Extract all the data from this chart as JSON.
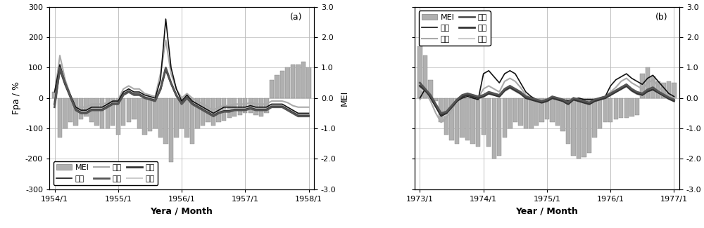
{
  "panel_a": {
    "title": "(a)",
    "xlabel": "Yera / Month",
    "year_start": 1954,
    "year_end": 1958,
    "n_months": 49,
    "xtick_years": [
      1954,
      1955,
      1956,
      1957,
      1958
    ],
    "MEI_bars": [
      20,
      -130,
      -100,
      -80,
      -90,
      -70,
      -60,
      -80,
      -90,
      -100,
      -100,
      -90,
      -120,
      -90,
      -80,
      -70,
      -100,
      -120,
      -110,
      -100,
      -130,
      -150,
      -210,
      -130,
      -100,
      -130,
      -150,
      -100,
      -90,
      -80,
      -90,
      -80,
      -75,
      -65,
      -60,
      -55,
      -50,
      -50,
      -55,
      -60,
      -50,
      60,
      75,
      90,
      100,
      110,
      110,
      120,
      100
    ],
    "tianyi": [
      20,
      110,
      50,
      10,
      -30,
      -40,
      -40,
      -30,
      -30,
      -30,
      -20,
      -10,
      -10,
      20,
      30,
      20,
      20,
      10,
      5,
      0,
      60,
      260,
      100,
      30,
      -10,
      10,
      -10,
      -20,
      -30,
      -40,
      -50,
      -40,
      -30,
      -30,
      -30,
      -30,
      -30,
      -25,
      -30,
      -30,
      -30,
      -20,
      -20,
      -20,
      -30,
      -40,
      -50,
      -50,
      -50
    ],
    "guangzhao": [
      10,
      140,
      60,
      10,
      -30,
      -30,
      -30,
      -20,
      -20,
      -20,
      -15,
      -10,
      -5,
      30,
      40,
      30,
      30,
      15,
      10,
      5,
      80,
      190,
      80,
      30,
      0,
      15,
      0,
      -10,
      -20,
      -30,
      -40,
      -30,
      -25,
      -25,
      -20,
      -20,
      -20,
      -15,
      -20,
      -20,
      -20,
      -10,
      -10,
      -10,
      -15,
      -25,
      -30,
      -30,
      -30
    ],
    "youjiang": [
      -30,
      100,
      50,
      5,
      -40,
      -50,
      -50,
      -40,
      -40,
      -40,
      -30,
      -20,
      -20,
      10,
      20,
      10,
      10,
      0,
      -5,
      -10,
      30,
      100,
      50,
      10,
      -20,
      0,
      -20,
      -30,
      -40,
      -50,
      -60,
      -50,
      -45,
      -45,
      -40,
      -40,
      -40,
      -35,
      -40,
      -40,
      -40,
      -30,
      -30,
      -30,
      -40,
      -50,
      -60,
      -60,
      -60
    ],
    "longtan": [
      -20,
      95,
      45,
      3,
      -38,
      -48,
      -48,
      -38,
      -38,
      -38,
      -28,
      -18,
      -18,
      12,
      22,
      12,
      12,
      2,
      -3,
      -8,
      28,
      95,
      48,
      8,
      -18,
      2,
      -18,
      -28,
      -38,
      -48,
      -58,
      -48,
      -43,
      -43,
      -38,
      -38,
      -38,
      -33,
      -38,
      -38,
      -38,
      -28,
      -28,
      -28,
      -38,
      -48,
      -58,
      -58,
      -58
    ],
    "changzhou": [
      -10,
      105,
      52,
      6,
      -35,
      -45,
      -45,
      -35,
      -35,
      -35,
      -25,
      -15,
      -15,
      15,
      25,
      15,
      15,
      5,
      0,
      -5,
      35,
      100,
      50,
      10,
      -15,
      5,
      -15,
      -25,
      -35,
      -45,
      -55,
      -45,
      -40,
      -40,
      -35,
      -35,
      -35,
      -30,
      -35,
      -35,
      -35,
      -25,
      -25,
      -25,
      -35,
      -45,
      -55,
      -55,
      -55
    ]
  },
  "panel_b": {
    "title": "(b)",
    "xlabel": "Year / Month",
    "year_start": 1973,
    "year_end": 1977,
    "n_months": 49,
    "xtick_years": [
      1973,
      1974,
      1975,
      1976,
      1977
    ],
    "MEI_bars": [
      170,
      140,
      60,
      -10,
      -80,
      -120,
      -140,
      -150,
      -130,
      -140,
      -150,
      -160,
      -120,
      -160,
      -200,
      -190,
      -130,
      -100,
      -80,
      -90,
      -100,
      -100,
      -90,
      -80,
      -70,
      -80,
      -90,
      -110,
      -150,
      -190,
      -200,
      -195,
      -180,
      -130,
      -100,
      -80,
      -80,
      -70,
      -65,
      -65,
      -60,
      -55,
      80,
      100,
      70,
      55,
      50,
      55,
      50
    ],
    "tianyi": [
      0,
      30,
      0,
      -30,
      -60,
      -50,
      -30,
      -10,
      0,
      5,
      0,
      -5,
      80,
      90,
      70,
      50,
      80,
      90,
      80,
      50,
      20,
      5,
      -5,
      -10,
      -5,
      0,
      -5,
      -5,
      -10,
      -5,
      0,
      -5,
      -5,
      -5,
      0,
      5,
      40,
      60,
      70,
      80,
      65,
      55,
      45,
      65,
      75,
      55,
      35,
      15,
      5
    ],
    "guangzhao": [
      -5,
      20,
      -10,
      -50,
      -80,
      -65,
      -40,
      -10,
      5,
      10,
      5,
      0,
      30,
      40,
      30,
      20,
      55,
      65,
      55,
      35,
      10,
      0,
      -5,
      -10,
      -5,
      5,
      0,
      -5,
      -15,
      0,
      -5,
      -10,
      -15,
      -5,
      0,
      5,
      20,
      35,
      55,
      65,
      50,
      40,
      30,
      50,
      60,
      40,
      20,
      5,
      0
    ],
    "youjiang": [
      50,
      30,
      10,
      -20,
      -50,
      -45,
      -25,
      -5,
      10,
      15,
      10,
      5,
      10,
      20,
      15,
      10,
      30,
      40,
      30,
      20,
      5,
      0,
      -5,
      -10,
      -5,
      5,
      0,
      -5,
      -15,
      0,
      -5,
      -10,
      -15,
      -5,
      0,
      5,
      15,
      25,
      35,
      45,
      30,
      20,
      15,
      28,
      35,
      22,
      12,
      2,
      -5
    ],
    "longtan": [
      40,
      25,
      5,
      -25,
      -55,
      -50,
      -30,
      -10,
      5,
      10,
      5,
      0,
      5,
      15,
      10,
      5,
      25,
      35,
      25,
      15,
      0,
      -5,
      -10,
      -15,
      -10,
      0,
      -5,
      -10,
      -20,
      -5,
      -10,
      -15,
      -20,
      -10,
      -5,
      0,
      10,
      20,
      30,
      40,
      25,
      15,
      10,
      22,
      28,
      18,
      8,
      -2,
      -10
    ],
    "changzhou": [
      30,
      20,
      0,
      -30,
      -60,
      -55,
      -35,
      -12,
      5,
      10,
      5,
      0,
      5,
      15,
      10,
      5,
      22,
      32,
      22,
      12,
      0,
      -5,
      -10,
      -15,
      -10,
      0,
      -5,
      -10,
      -20,
      -5,
      -10,
      -15,
      -20,
      -10,
      -5,
      0,
      10,
      20,
      28,
      38,
      22,
      12,
      8,
      20,
      26,
      16,
      6,
      -4,
      -12
    ]
  },
  "colors": {
    "MEI_bar": "#b0b0b0",
    "MEI_bar_edge": "#808080",
    "tianyi": "#111111",
    "guangzhao": "#aaaaaa",
    "youjiang": "#555555",
    "longtan": "#333333",
    "changzhou": "#cccccc",
    "grid": "#aaaaaa",
    "vgrid": "#9999aa"
  },
  "line_widths": {
    "tianyi": 1.2,
    "guangzhao": 1.5,
    "youjiang": 2.0,
    "longtan": 2.0,
    "changzhou": 1.5
  },
  "ylim": [
    -300,
    300
  ],
  "mei_ylim": [
    -3.0,
    3.0
  ],
  "yticks_left": [
    -300,
    -200,
    -100,
    0,
    100,
    200,
    300
  ],
  "yticks_right": [
    -3.0,
    -2.0,
    -1.0,
    0.0,
    1.0,
    2.0,
    3.0
  ],
  "ytick_labels_right": [
    "-3.0",
    "-2.0",
    "-1.0",
    "0.0",
    "1.0",
    "2.0",
    "3.0"
  ],
  "legend_a_order": [
    "MEI",
    "天一",
    "光照",
    "右江",
    "龙滩",
    "长洲"
  ],
  "legend_b_order": [
    "MEI",
    "天一",
    "光照",
    "右江",
    "龙滩",
    "长洲"
  ]
}
